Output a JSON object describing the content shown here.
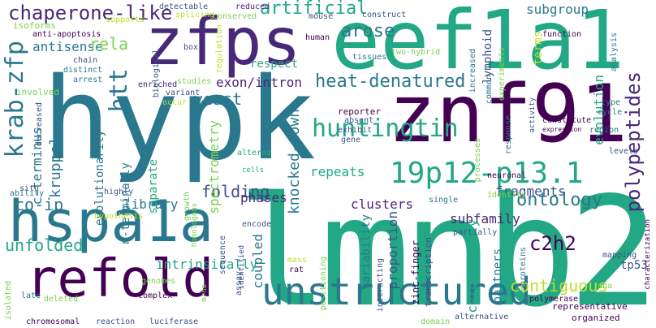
{
  "words": [
    {
      "text": "hypk",
      "color": "#2a788e"
    },
    {
      "text": "lmnb2",
      "color": "#22a884"
    },
    {
      "text": "znf91",
      "color": "#440154"
    },
    {
      "text": "eef1a1",
      "color": "#22a884"
    },
    {
      "text": "zfps",
      "color": "#482878"
    },
    {
      "text": "hspa1a",
      "color": "#2a788e"
    },
    {
      "text": "refold",
      "color": "#440154"
    },
    {
      "text": "unstructured",
      "color": "#2a788e"
    },
    {
      "text": "19p12-p13.1",
      "color": "#22a884"
    },
    {
      "text": "huntingtin",
      "color": "#22a884"
    },
    {
      "text": "krab-zfp",
      "color": "#2a788e"
    },
    {
      "text": "htt",
      "color": "#2a788e"
    },
    {
      "text": "chaperone-like",
      "color": "#482878"
    },
    {
      "text": "artificial",
      "color": "#22a884"
    },
    {
      "text": "arose",
      "color": "#2a788e"
    },
    {
      "text": "heat-denatured",
      "color": "#2a788e"
    },
    {
      "text": "polypeptides",
      "color": "#482878"
    },
    {
      "text": "knocked-down",
      "color": "#2a788e"
    },
    {
      "text": "ontology",
      "color": "#2a788e"
    },
    {
      "text": "c2h2",
      "color": "#440154"
    },
    {
      "text": "kruppel",
      "color": "#2a788e"
    },
    {
      "text": "contiguous",
      "color": "#bddf26"
    },
    {
      "text": "yeast",
      "color": "#2a788e"
    },
    {
      "text": "folding",
      "color": "#3b528b"
    },
    {
      "text": "unfolded",
      "color": "#22a884"
    },
    {
      "text": "co-ip",
      "color": "#2a788e"
    },
    {
      "text": "antisense",
      "color": "#2a788e"
    },
    {
      "text": "rela",
      "color": "#7ad151"
    },
    {
      "text": "c-terminus",
      "color": "#2a788e"
    },
    {
      "text": "exon/intron",
      "color": "#482878"
    },
    {
      "text": "subgroup",
      "color": "#2a788e"
    },
    {
      "text": "evolution",
      "color": "#22a884"
    },
    {
      "text": "fragments",
      "color": "#3b528b"
    },
    {
      "text": "subfamily",
      "color": "#482878"
    },
    {
      "text": "clusters",
      "color": "#482878"
    },
    {
      "text": "library",
      "color": "#2a788e"
    },
    {
      "text": "phases",
      "color": "#482878"
    },
    {
      "text": "repeats",
      "color": "#22a884"
    },
    {
      "text": "intrinsically",
      "color": "#22a884"
    },
    {
      "text": "coupled",
      "color": "#2a788e"
    },
    {
      "text": "proportion",
      "color": "#3b528b"
    },
    {
      "text": "cytotoxicity",
      "color": "#22a884"
    },
    {
      "text": "partners",
      "color": "#2a788e"
    },
    {
      "text": "variability",
      "color": "#2a788e"
    },
    {
      "text": "spectrometry",
      "color": "#7ad151"
    },
    {
      "text": "separate",
      "color": "#22a884"
    },
    {
      "text": "n-terminally",
      "color": "#2a788e"
    },
    {
      "text": "evolutionarily",
      "color": "#2a788e"
    },
    {
      "text": "lymphoid",
      "color": "#3b528b"
    },
    {
      "text": "respect",
      "color": "#22a884"
    },
    {
      "text": "terms",
      "color": "#bddf26"
    },
    {
      "text": "tp53",
      "color": "#3b528b"
    },
    {
      "text": "zinc-finger",
      "color": "#440154"
    },
    {
      "text": "transcription",
      "color": "#3b528b"
    },
    {
      "text": "isoforms",
      "color": "#7ad151"
    },
    {
      "text": "anti-apoptosis",
      "color": "#440154"
    },
    {
      "text": "chain",
      "color": "#3b528b"
    },
    {
      "text": "distinct",
      "color": "#2a788e"
    },
    {
      "text": "involved",
      "color": "#7ad151"
    },
    {
      "text": "arrest",
      "color": "#2a788e"
    },
    {
      "text": "enriched",
      "color": "#482878"
    },
    {
      "text": "decreased",
      "color": "#3b528b"
    },
    {
      "text": "situ",
      "color": "#3b528b"
    },
    {
      "text": "ability",
      "color": "#2a788e"
    },
    {
      "text": "hypothesis",
      "color": "#bddf26"
    },
    {
      "text": "highly",
      "color": "#3b528b"
    },
    {
      "text": "growth",
      "color": "#7ad151"
    },
    {
      "text": "detectable",
      "color": "#3b528b"
    },
    {
      "text": "supports",
      "color": "#bddf26"
    },
    {
      "text": "biological",
      "color": "#3b528b"
    },
    {
      "text": "splicing",
      "color": "#bddf26"
    },
    {
      "text": "box",
      "color": "#3b528b"
    },
    {
      "text": "regulation",
      "color": "#bddf26"
    },
    {
      "text": "reduced",
      "color": "#482878"
    },
    {
      "text": "conserved",
      "color": "#7ad151"
    },
    {
      "text": "mouse",
      "color": "#3b528b"
    },
    {
      "text": "construct",
      "color": "#3b528b"
    },
    {
      "text": "human",
      "color": "#440154"
    },
    {
      "text": "tissues",
      "color": "#2a788e"
    },
    {
      "text": "two-hybrid",
      "color": "#7ad151"
    },
    {
      "text": "increased",
      "color": "#2a788e"
    },
    {
      "text": "experiments",
      "color": "#7ad151"
    },
    {
      "text": "function",
      "color": "#440154"
    },
    {
      "text": "analysis",
      "color": "#2a788e"
    },
    {
      "text": "type",
      "color": "#2a788e"
    },
    {
      "text": "cycle",
      "color": "#2a788e"
    },
    {
      "text": "region",
      "color": "#2a788e"
    },
    {
      "text": "constitute",
      "color": "#440154"
    },
    {
      "text": "expression",
      "color": "#440154"
    },
    {
      "text": "levels",
      "color": "#3b528b"
    },
    {
      "text": "neuronal",
      "color": "#440154"
    },
    {
      "text": "identity",
      "color": "#7ad151"
    },
    {
      "text": "single",
      "color": "#2a788e"
    },
    {
      "text": "activity",
      "color": "#3b528b"
    },
    {
      "text": "response",
      "color": "#2a788e"
    },
    {
      "text": "processes",
      "color": "#7ad151"
    },
    {
      "text": "common",
      "color": "#2a788e"
    },
    {
      "text": "reporter",
      "color": "#440154"
    },
    {
      "text": "absent",
      "color": "#3b528b"
    },
    {
      "text": "exhibit",
      "color": "#3b528b"
    },
    {
      "text": "gene",
      "color": "#3b528b"
    },
    {
      "text": "altered",
      "color": "#22a884"
    },
    {
      "text": "cells",
      "color": "#22a884"
    },
    {
      "text": "studies",
      "color": "#7ad151"
    },
    {
      "text": "occur",
      "color": "#bddf26"
    },
    {
      "text": "variant",
      "color": "#3b528b"
    },
    {
      "text": "homologous",
      "color": "#7ad151"
    },
    {
      "text": "sequence",
      "color": "#3b528b"
    },
    {
      "text": "encode",
      "color": "#3b528b"
    },
    {
      "text": "genomes",
      "color": "#7ad151"
    },
    {
      "text": "complex",
      "color": "#440154"
    },
    {
      "text": "mrna",
      "color": "#7ad151"
    },
    {
      "text": "assay",
      "color": "#3b528b"
    },
    {
      "text": "mass",
      "color": "#bddf26"
    },
    {
      "text": "rat",
      "color": "#440154"
    },
    {
      "text": "positioning",
      "color": "#7ad151"
    },
    {
      "text": "interacting",
      "color": "#3b528b"
    },
    {
      "text": "identified",
      "color": "#3b528b"
    },
    {
      "text": "deleted",
      "color": "#7ad151"
    },
    {
      "text": "late",
      "color": "#2a788e"
    },
    {
      "text": "isolated",
      "color": "#7ad151"
    },
    {
      "text": "chromosomal",
      "color": "#440154"
    },
    {
      "text": "reaction",
      "color": "#3b528b"
    },
    {
      "text": "luciferase",
      "color": "#3b528b"
    },
    {
      "text": "domain",
      "color": "#7ad151"
    },
    {
      "text": "alternative",
      "color": "#3b528b"
    },
    {
      "text": "polymerase",
      "color": "#440154"
    },
    {
      "text": "representative",
      "color": "#440154"
    },
    {
      "text": "organized",
      "color": "#440154"
    },
    {
      "text": "proteins",
      "color": "#2a788e"
    },
    {
      "text": "dna",
      "color": "#7ad151"
    },
    {
      "text": "mapping",
      "color": "#3b528b"
    },
    {
      "text": "partially",
      "color": "#3b528b"
    },
    {
      "text": "characterization",
      "color": "#440154"
    }
  ]
}
